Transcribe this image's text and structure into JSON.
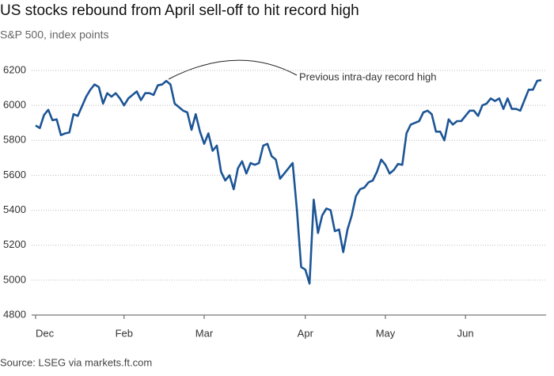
{
  "chart_data": {
    "type": "line",
    "title": "US stocks rebound from April sell-off to hit record high",
    "subtitle": "S&P 500, index points",
    "source": "Source: LSEG via markets.ft.com",
    "annotation": "Previous intra-day record high",
    "categories": [
      "Dec",
      null,
      null,
      null,
      null,
      null,
      null,
      null,
      null,
      null,
      null,
      null,
      null,
      null,
      null,
      null,
      null,
      null,
      null,
      null,
      null,
      "Feb",
      null,
      null,
      null,
      null,
      null,
      null,
      null,
      null,
      null,
      null,
      null,
      null,
      null,
      null,
      null,
      null,
      null,
      null,
      "Mar",
      null,
      null,
      null,
      null,
      null,
      null,
      null,
      null,
      null,
      null,
      null,
      null,
      null,
      null,
      null,
      null,
      null,
      null,
      null,
      null,
      null,
      null,
      null,
      "Apr",
      null,
      null,
      null,
      null,
      null,
      null,
      null,
      null,
      null,
      null,
      null,
      null,
      null,
      null,
      null,
      null,
      null,
      null,
      "May",
      null,
      null,
      null,
      null,
      null,
      null,
      null,
      null,
      null,
      null,
      null,
      null,
      null,
      null,
      null,
      null,
      null,
      null,
      "Jun",
      null,
      null,
      null,
      null,
      null,
      null,
      null,
      null,
      null,
      null,
      null,
      null,
      null,
      null,
      null,
      null,
      null,
      null
    ],
    "values": [
      5885,
      5870,
      5945,
      5975,
      5915,
      5920,
      5830,
      5840,
      5845,
      5950,
      5940,
      5995,
      6050,
      6090,
      6120,
      6105,
      6010,
      6070,
      6050,
      6070,
      6040,
      6000,
      6040,
      6060,
      6080,
      6030,
      6070,
      6070,
      6060,
      6115,
      6120,
      6140,
      6120,
      6010,
      5990,
      5970,
      5960,
      5860,
      5950,
      5850,
      5780,
      5840,
      5740,
      5770,
      5620,
      5570,
      5600,
      5520,
      5640,
      5680,
      5610,
      5670,
      5660,
      5670,
      5770,
      5780,
      5710,
      5690,
      5580,
      5610,
      5640,
      5670,
      5400,
      5075,
      5060,
      4980,
      5460,
      5270,
      5370,
      5410,
      5400,
      5280,
      5290,
      5160,
      5290,
      5370,
      5480,
      5520,
      5530,
      5560,
      5570,
      5620,
      5690,
      5660,
      5610,
      5630,
      5665,
      5660,
      5840,
      5890,
      5900,
      5910,
      5960,
      5970,
      5950,
      5850,
      5850,
      5800,
      5920,
      5890,
      5910,
      5910,
      5940,
      5970,
      5970,
      5940,
      6000,
      6010,
      6040,
      6025,
      6040,
      5980,
      6040,
      5980,
      5980,
      5970,
      6030,
      6090,
      6090,
      6140,
      6145
    ],
    "color": "#1c5596",
    "ylim": [
      4800,
      6200
    ],
    "yticks": [
      4800,
      5000,
      5200,
      5400,
      5600,
      5800,
      6000,
      6200
    ],
    "grid": true
  }
}
